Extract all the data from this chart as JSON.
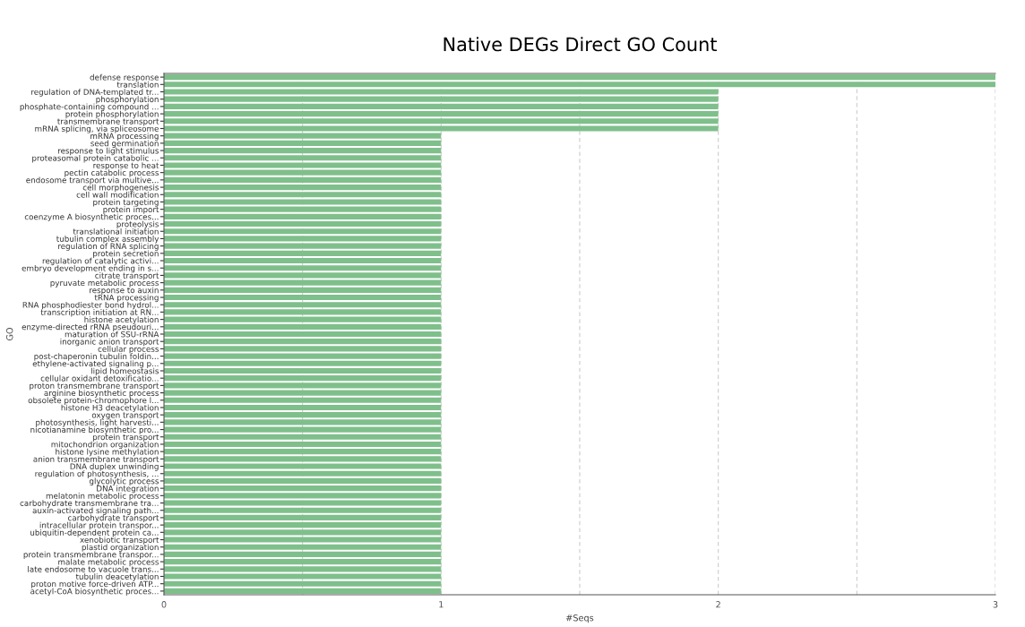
{
  "chart_data": {
    "type": "bar",
    "orientation": "horizontal",
    "title": "Native DEGs Direct GO Count",
    "xlabel": "#Seqs",
    "ylabel": "GO",
    "categories": [
      "defense response",
      "translation",
      "regulation of DNA-templated tr...",
      "phosphorylation",
      "phosphate-containing compound ...",
      "protein phosphorylation",
      "transmembrane transport",
      "mRNA splicing, via spliceosome",
      "mRNA processing",
      "seed germination",
      "response to light stimulus",
      "proteasomal protein catabolic ...",
      "response to heat",
      "pectin catabolic process",
      "endosome transport via multive...",
      "cell morphogenesis",
      "cell wall modification",
      "protein targeting",
      "protein import",
      "coenzyme A biosynthetic proces...",
      "proteolysis",
      "translational initiation",
      "tubulin complex assembly",
      "regulation of RNA splicing",
      "protein secretion",
      "regulation of catalytic activi...",
      "embryo development ending in s...",
      "citrate transport",
      "pyruvate metabolic process",
      "response to auxin",
      "tRNA processing",
      "RNA phosphodiester bond hydrol...",
      "transcription initiation at RN...",
      "histone acetylation",
      "enzyme-directed rRNA pseudouri...",
      "maturation of SSU-rRNA",
      "inorganic anion transport",
      "cellular process",
      "post-chaperonin tubulin foldin...",
      "ethylene-activated signaling p...",
      "lipid homeostasis",
      "cellular oxidant detoxificatio...",
      "proton transmembrane transport",
      "arginine biosynthetic process",
      "obsolete protein-chromophore l...",
      "histone H3 deacetylation",
      "oxygen transport",
      "photosynthesis, light harvesti...",
      "nicotianamine biosynthetic pro...",
      "protein transport",
      "mitochondrion organization",
      "histone lysine methylation",
      "anion transmembrane transport",
      "DNA duplex unwinding",
      "regulation of photosynthesis, ...",
      "glycolytic process",
      "DNA integration",
      "melatonin metabolic process",
      "carbohydrate transmembrane tra...",
      "auxin-activated signaling path...",
      "carbohydrate transport",
      "intracellular protein transpor...",
      "ubiquitin-dependent protein ca...",
      "xenobiotic transport",
      "plastid organization",
      "protein transmembrane transpor...",
      "malate metabolic process",
      "late endosome to vacuole trans...",
      "tubulin deacetylation",
      "proton motive force-driven ATP...",
      "acetyl-CoA biosynthetic proces..."
    ],
    "values": [
      3,
      3,
      2,
      2,
      2,
      2,
      2,
      2,
      1,
      1,
      1,
      1,
      1,
      1,
      1,
      1,
      1,
      1,
      1,
      1,
      1,
      1,
      1,
      1,
      1,
      1,
      1,
      1,
      1,
      1,
      1,
      1,
      1,
      1,
      1,
      1,
      1,
      1,
      1,
      1,
      1,
      1,
      1,
      1,
      1,
      1,
      1,
      1,
      1,
      1,
      1,
      1,
      1,
      1,
      1,
      1,
      1,
      1,
      1,
      1,
      1,
      1,
      1,
      1,
      1,
      1,
      1,
      1,
      1,
      1,
      1
    ],
    "color": "#7fbf8b",
    "xlim": [
      0,
      3
    ],
    "xticks": [
      0,
      {
        "value": 0.5,
        "label": null
      },
      1,
      {
        "value": 1.5,
        "label": null
      },
      2,
      {
        "value": 2.5,
        "label": null
      },
      3
    ],
    "grid": "x"
  }
}
